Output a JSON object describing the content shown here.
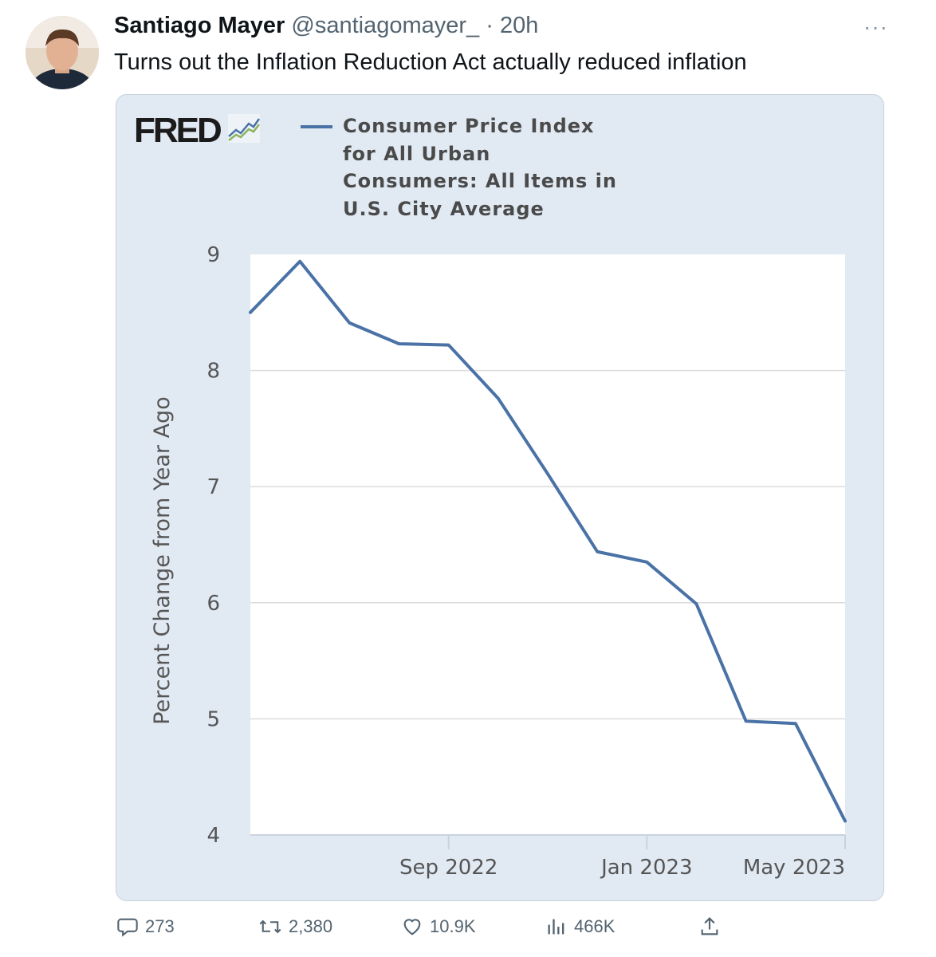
{
  "tweet": {
    "author_name": "Santiago Mayer",
    "author_handle": "@santiagomayer_",
    "separator": "·",
    "timestamp": "20h",
    "text": "Turns out the Inflation Reduction Act actually reduced inflation"
  },
  "card": {
    "logo": "FRED",
    "legend_lines": [
      "Consumer Price Index",
      "for All Urban",
      "Consumers: All Items in",
      "U.S. City Average"
    ]
  },
  "actions": {
    "replies": "273",
    "retweets": "2,380",
    "likes": "10.9K",
    "views": "466K"
  },
  "chart_data": {
    "type": "line",
    "title": "Consumer Price Index for All Urban Consumers: All Items in U.S. City Average",
    "ylabel": "Percent Change from Year Ago",
    "xlabel": "",
    "ylim": [
      4,
      9
    ],
    "yticks": [
      "4",
      "5",
      "6",
      "7",
      "8",
      "9"
    ],
    "xticks": [
      {
        "label": "Sep 2022",
        "index": 4
      },
      {
        "label": "Jan 2023",
        "index": 8
      },
      {
        "label": "May 2023",
        "index": 12
      }
    ],
    "x": [
      "2022-05",
      "2022-06",
      "2022-07",
      "2022-08",
      "2022-09",
      "2022-10",
      "2022-11",
      "2022-12",
      "2023-01",
      "2023-02",
      "2023-03",
      "2023-04",
      "2023-05"
    ],
    "series": [
      {
        "name": "Consumer Price Index for All Urban Consumers: All Items in U.S. City Average",
        "values": [
          8.5,
          8.94,
          8.41,
          8.23,
          8.22,
          7.76,
          7.11,
          6.44,
          6.35,
          5.99,
          4.98,
          4.96,
          4.12
        ],
        "color": "#4a72a6"
      }
    ]
  }
}
